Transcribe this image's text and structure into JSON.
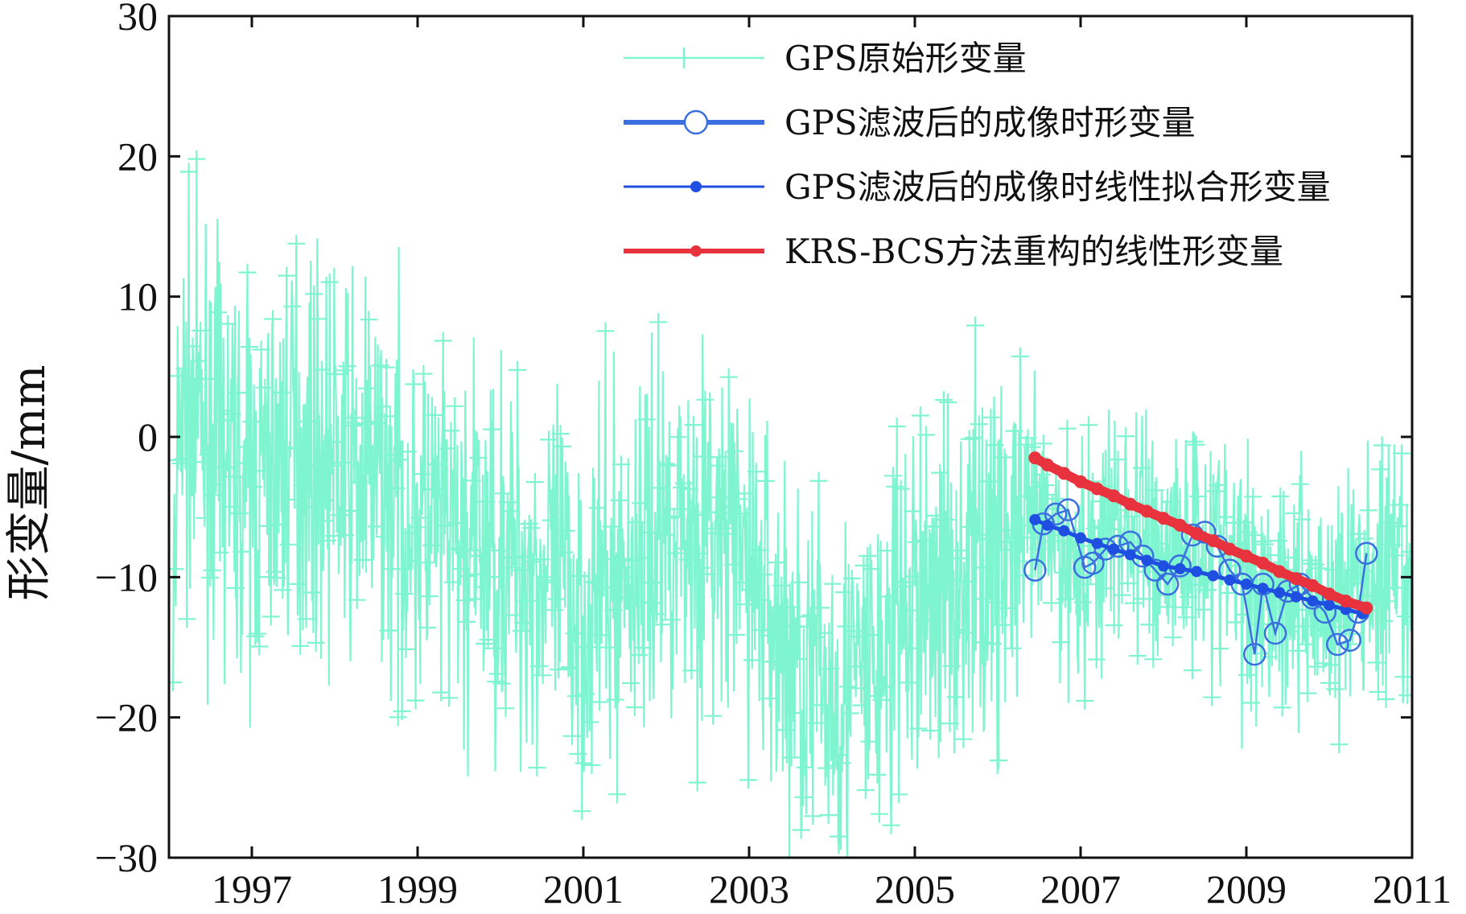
{
  "chart_data": {
    "type": "line",
    "title": "",
    "xlabel": "",
    "ylabel": "形变量/mm",
    "xlim": [
      1996.0,
      2011.0
    ],
    "ylim": [
      -30,
      30
    ],
    "x_ticks": [
      1997,
      1999,
      2001,
      2003,
      2005,
      2007,
      2009,
      2011
    ],
    "x_tick_labels": [
      "1997",
      "1999",
      "2001",
      "2003",
      "2005",
      "2007",
      "2009",
      "2011"
    ],
    "y_ticks": [
      -30,
      -20,
      -10,
      0,
      10,
      20,
      30
    ],
    "y_tick_labels": [
      "−30",
      "−20",
      "−10",
      "0",
      "10",
      "20",
      "30"
    ],
    "grid": false,
    "legend_position": "top-right",
    "colors": {
      "raw": "#7ff5cf",
      "filtered": "#3a6fe0",
      "linear_fit": "#1f4fe0",
      "krs_bcs": "#e8333f",
      "axis": "#111111"
    },
    "series": [
      {
        "name": "GPS原始形变量",
        "style": "line-plus",
        "description_trend": [
          {
            "x": 1996.1,
            "y": 2
          },
          {
            "x": 1996.5,
            "y": 0
          },
          {
            "x": 1997.0,
            "y": -4
          },
          {
            "x": 1997.5,
            "y": 0
          },
          {
            "x": 1998.0,
            "y": -2
          },
          {
            "x": 1998.5,
            "y": -3
          },
          {
            "x": 1999.0,
            "y": -6
          },
          {
            "x": 1999.5,
            "y": -8
          },
          {
            "x": 2000.0,
            "y": -8
          },
          {
            "x": 2000.5,
            "y": -10
          },
          {
            "x": 2001.0,
            "y": -12
          },
          {
            "x": 2001.5,
            "y": -10
          },
          {
            "x": 2002.0,
            "y": -6
          },
          {
            "x": 2002.5,
            "y": -7
          },
          {
            "x": 2003.0,
            "y": -9
          },
          {
            "x": 2003.5,
            "y": -16
          },
          {
            "x": 2004.0,
            "y": -18
          },
          {
            "x": 2004.5,
            "y": -17
          },
          {
            "x": 2005.0,
            "y": -12
          },
          {
            "x": 2005.5,
            "y": -10
          },
          {
            "x": 2006.0,
            "y": -8
          },
          {
            "x": 2006.5,
            "y": -7
          },
          {
            "x": 2007.0,
            "y": -9
          },
          {
            "x": 2007.5,
            "y": -6
          },
          {
            "x": 2008.0,
            "y": -8
          },
          {
            "x": 2008.5,
            "y": -7
          },
          {
            "x": 2009.0,
            "y": -10
          },
          {
            "x": 2009.5,
            "y": -11
          },
          {
            "x": 2010.0,
            "y": -12
          },
          {
            "x": 2010.5,
            "y": -10
          },
          {
            "x": 2011.0,
            "y": -11
          }
        ],
        "amplitude_mm": 12
      },
      {
        "name": "GPS滤波后的成像时形变量",
        "style": "thick-line-open-circle",
        "x": [
          2006.45,
          2006.55,
          2006.7,
          2006.85,
          2007.05,
          2007.15,
          2007.3,
          2007.45,
          2007.6,
          2007.75,
          2007.9,
          2008.05,
          2008.2,
          2008.35,
          2008.5,
          2008.65,
          2008.8,
          2008.95,
          2009.1,
          2009.2,
          2009.35,
          2009.5,
          2009.65,
          2009.8,
          2009.95,
          2010.1,
          2010.25,
          2010.35,
          2010.45
        ],
        "y": [
          -9.5,
          -6.2,
          -5.5,
          -5.2,
          -9.3,
          -9.0,
          -8.0,
          -7.8,
          -7.5,
          -8.5,
          -9.5,
          -10.5,
          -9.2,
          -7.0,
          -6.8,
          -7.8,
          -9.5,
          -10.5,
          -15.5,
          -10.5,
          -14.0,
          -11.0,
          -10.5,
          -11.5,
          -12.5,
          -14.8,
          -14.5,
          -12.5,
          -8.3
        ]
      },
      {
        "name": "GPS滤波后的成像时线性拟合形变量",
        "style": "line-filled-dot",
        "x": [
          2006.45,
          2006.6,
          2006.8,
          2007.0,
          2007.2,
          2007.4,
          2007.6,
          2007.8,
          2008.0,
          2008.2,
          2008.4,
          2008.6,
          2008.8,
          2009.0,
          2009.2,
          2009.4,
          2009.6,
          2009.8,
          2010.0,
          2010.2,
          2010.4
        ],
        "y": [
          -5.9,
          -6.3,
          -6.7,
          -7.2,
          -7.6,
          -8.0,
          -8.4,
          -8.8,
          -9.2,
          -9.4,
          -9.6,
          -9.9,
          -10.2,
          -10.5,
          -10.8,
          -11.1,
          -11.4,
          -11.7,
          -12.0,
          -12.3,
          -12.6
        ]
      },
      {
        "name": "KRS-BCS方法重构的线性形变量",
        "style": "thick-line-filled-dot",
        "x": [
          2006.45,
          2006.6,
          2006.8,
          2007.0,
          2007.2,
          2007.4,
          2007.6,
          2007.8,
          2008.0,
          2008.2,
          2008.4,
          2008.6,
          2008.8,
          2009.0,
          2009.2,
          2009.4,
          2009.6,
          2009.8,
          2010.0,
          2010.2,
          2010.45
        ],
        "y": [
          -1.5,
          -2.0,
          -2.6,
          -3.2,
          -3.7,
          -4.2,
          -4.8,
          -5.3,
          -5.8,
          -6.3,
          -6.9,
          -7.4,
          -8.0,
          -8.5,
          -9.0,
          -9.6,
          -10.1,
          -10.6,
          -11.2,
          -11.7,
          -12.2
        ]
      }
    ]
  }
}
